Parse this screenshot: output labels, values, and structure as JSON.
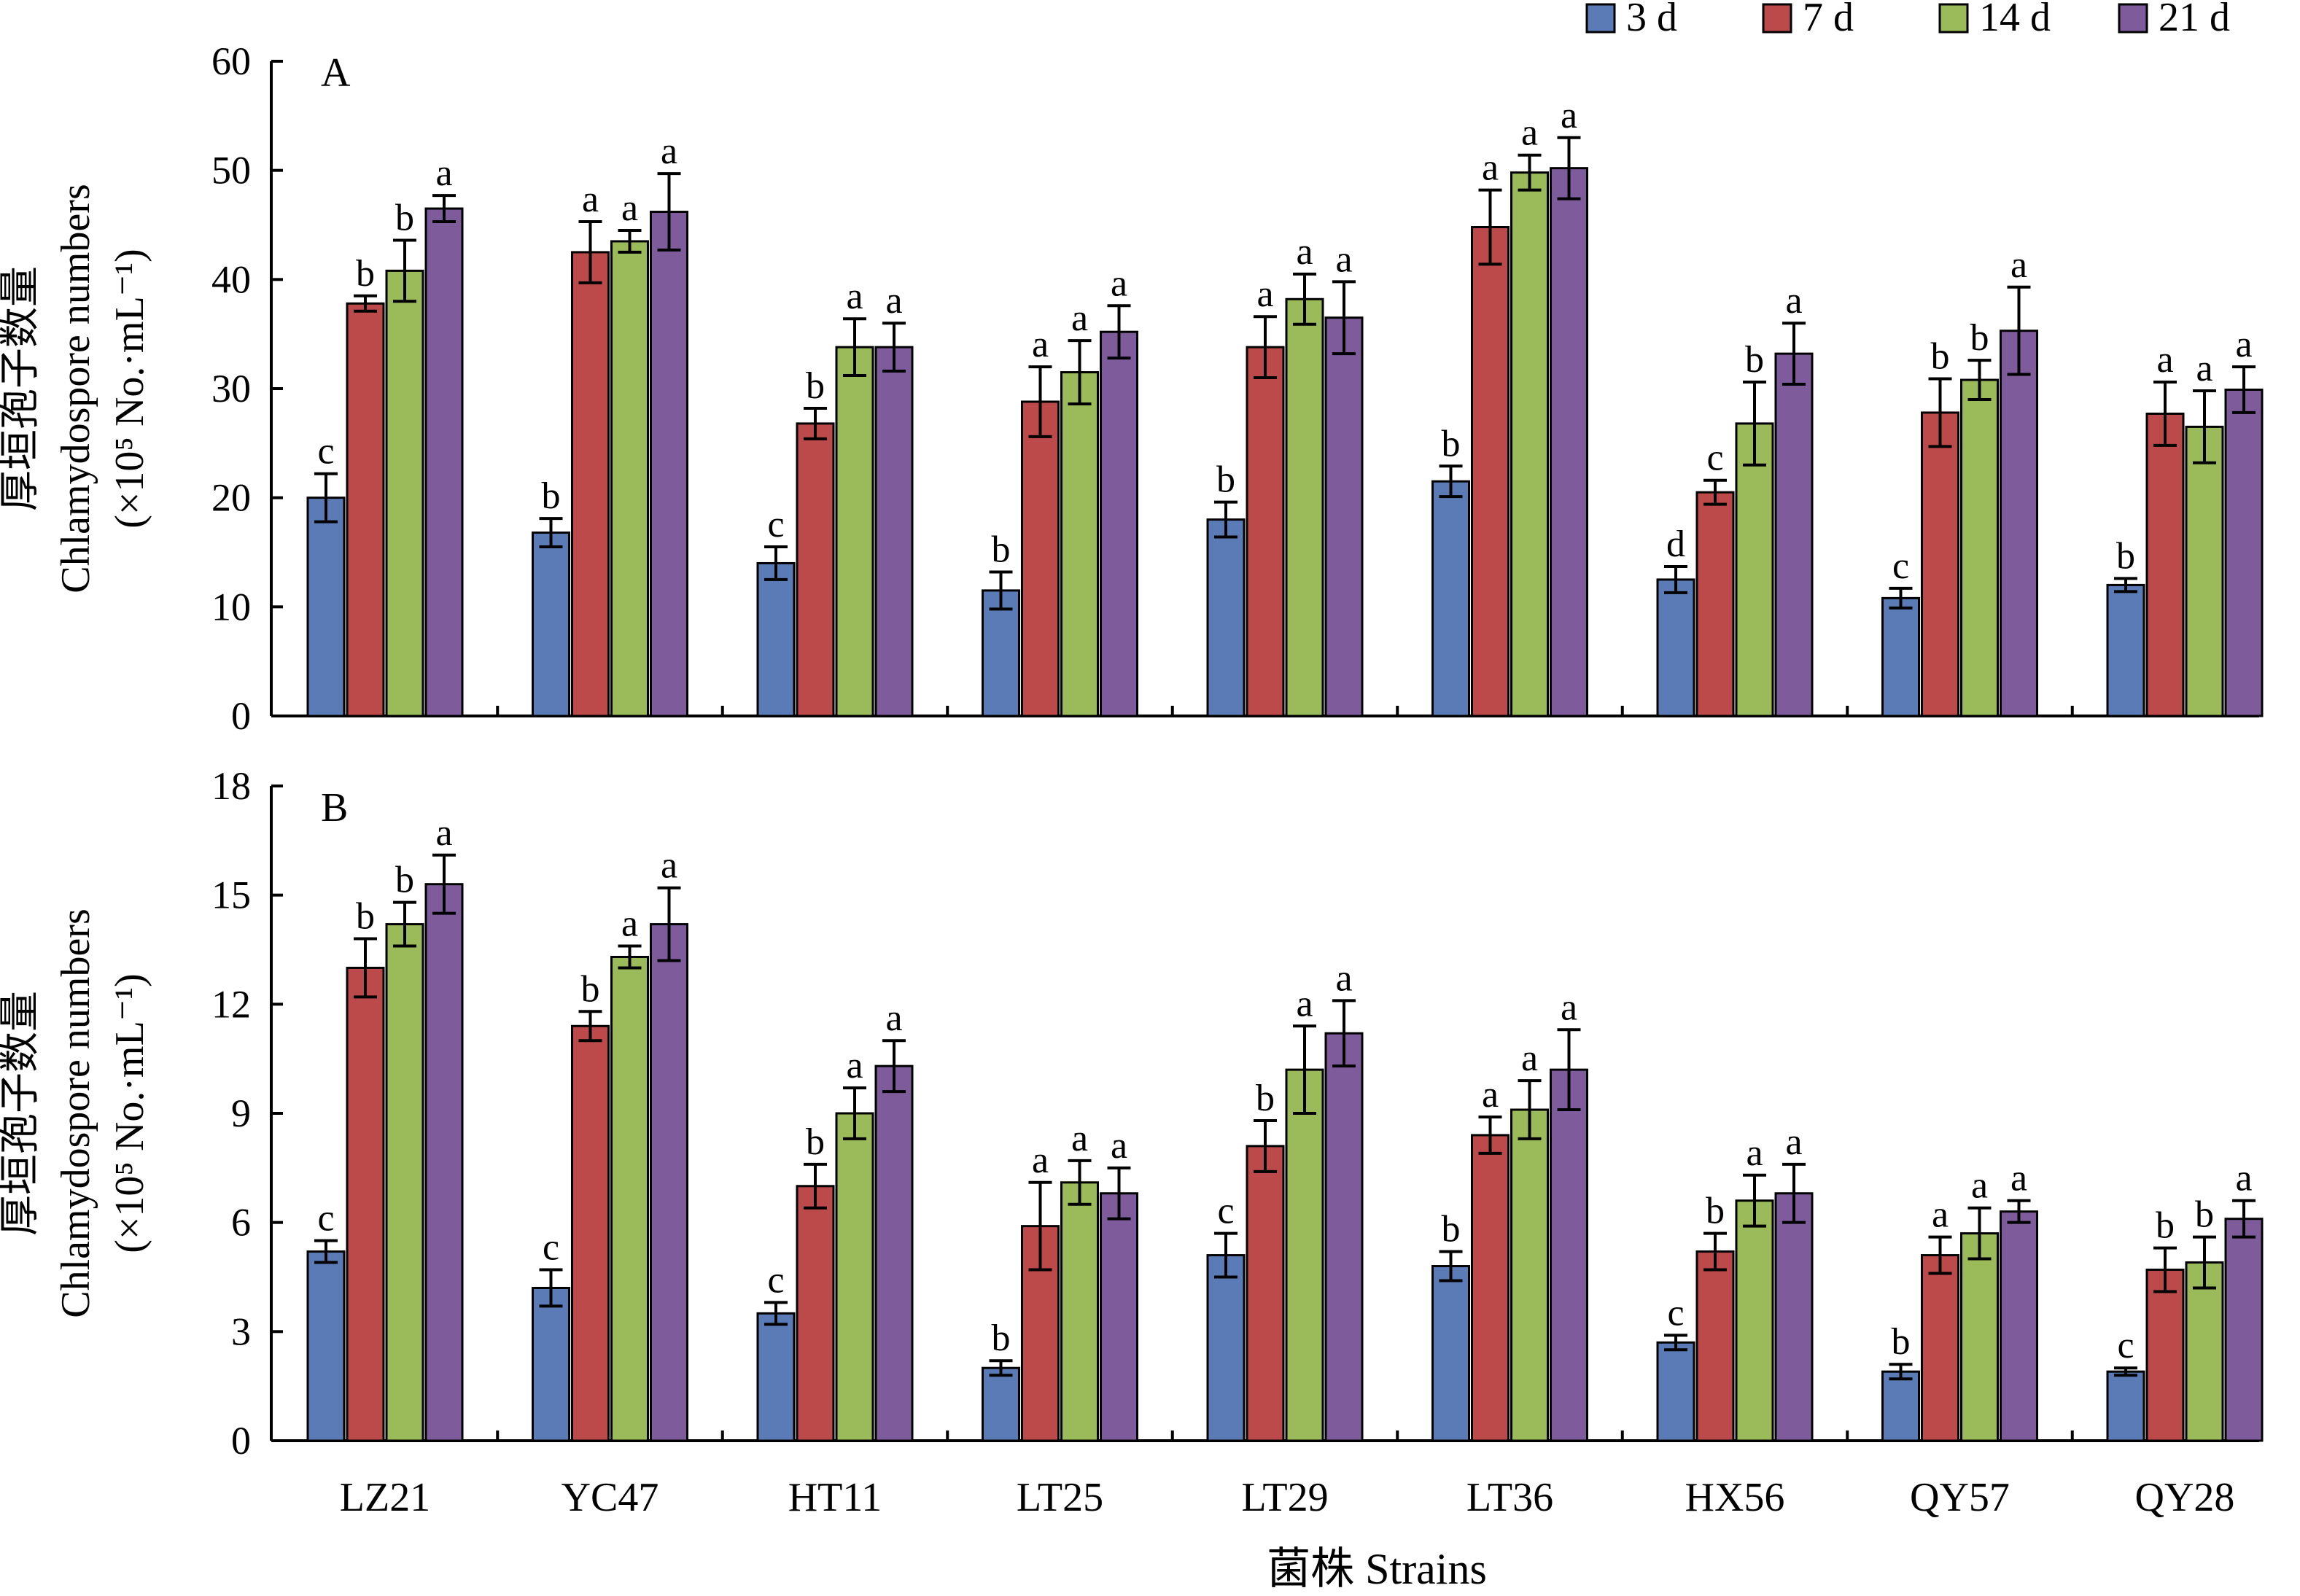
{
  "legend": [
    {
      "label": "3 d",
      "color": "#5b7bb6"
    },
    {
      "label": "7 d",
      "color": "#bc4a4a"
    },
    {
      "label": "14 d",
      "color": "#9bbb5a"
    },
    {
      "label": "21 d",
      "color": "#7e5c9c"
    }
  ],
  "xlabel": "菌株 Strains",
  "chart_data": [
    {
      "type": "bar",
      "panel": "A",
      "title": "A",
      "ylabel_cn": "厚垣孢子数量",
      "ylabel_en": "Chlamydospore numbers",
      "ylabel_unit": "(×10⁵ No.·mL⁻¹)",
      "ylim": [
        0,
        60
      ],
      "yticks": [
        "0",
        "10",
        "20",
        "30",
        "40",
        "50",
        "60"
      ],
      "ytick_values": [
        0,
        10,
        20,
        30,
        40,
        50,
        60
      ],
      "categories": [
        "LZ21",
        "YC47",
        "HT11",
        "LT25",
        "LT29",
        "LT36",
        "HX56",
        "QY57",
        "QY28"
      ],
      "series": [
        {
          "name": "3 d",
          "values": [
            20,
            16.8,
            14,
            11.5,
            18,
            21.5,
            12.5,
            10.8,
            12
          ],
          "errors": [
            2.2,
            1.3,
            1.5,
            1.7,
            1.6,
            1.4,
            1.2,
            0.9,
            0.6
          ],
          "letters": [
            "c",
            "b",
            "c",
            "b",
            "b",
            "b",
            "d",
            "c",
            "b"
          ]
        },
        {
          "name": "7 d",
          "values": [
            37.8,
            42.5,
            26.8,
            28.8,
            33.8,
            44.8,
            20.5,
            27.8,
            27.7
          ],
          "errors": [
            0.7,
            2.8,
            1.4,
            3.2,
            2.8,
            3.4,
            1.1,
            3.1,
            2.9
          ],
          "letters": [
            "b",
            "a",
            "b",
            "a",
            "a",
            "a",
            "c",
            "b",
            "a"
          ]
        },
        {
          "name": "14 d",
          "values": [
            40.8,
            43.5,
            33.8,
            31.5,
            38.2,
            49.8,
            26.8,
            30.8,
            26.5
          ],
          "errors": [
            2.8,
            1.0,
            2.6,
            2.9,
            2.3,
            1.6,
            3.8,
            1.8,
            3.3
          ],
          "letters": [
            "b",
            "a",
            "a",
            "a",
            "a",
            "a",
            "b",
            "b",
            "a"
          ]
        },
        {
          "name": "21 d",
          "values": [
            46.5,
            46.2,
            33.8,
            35.2,
            36.5,
            50.2,
            33.2,
            35.3,
            29.9
          ],
          "errors": [
            1.2,
            3.5,
            2.2,
            2.4,
            3.3,
            2.8,
            2.8,
            4.0,
            2.1
          ],
          "letters": [
            "a",
            "a",
            "a",
            "a",
            "a",
            "a",
            "a",
            "a",
            "a"
          ]
        }
      ]
    },
    {
      "type": "bar",
      "panel": "B",
      "title": "B",
      "ylabel_cn": "厚垣孢子数量",
      "ylabel_en": "Chlamydospore numbers",
      "ylabel_unit": "(×10⁵ No.·mL⁻¹)",
      "ylim": [
        0,
        18
      ],
      "yticks": [
        "0",
        "3",
        "6",
        "9",
        "12",
        "15",
        "18"
      ],
      "ytick_values": [
        0,
        3,
        6,
        9,
        12,
        15,
        18
      ],
      "categories": [
        "LZ21",
        "YC47",
        "HT11",
        "LT25",
        "LT29",
        "LT36",
        "HX56",
        "QY57",
        "QY28"
      ],
      "series": [
        {
          "name": "3 d",
          "values": [
            5.2,
            4.2,
            3.5,
            2.0,
            5.1,
            4.8,
            2.7,
            1.9,
            1.9
          ],
          "errors": [
            0.3,
            0.5,
            0.3,
            0.2,
            0.6,
            0.4,
            0.2,
            0.2,
            0.1
          ],
          "letters": [
            "c",
            "c",
            "c",
            "b",
            "c",
            "b",
            "c",
            "b",
            "c"
          ]
        },
        {
          "name": "7 d",
          "values": [
            13.0,
            11.4,
            7.0,
            5.9,
            8.1,
            8.4,
            5.2,
            5.1,
            4.7
          ],
          "errors": [
            0.8,
            0.4,
            0.6,
            1.2,
            0.7,
            0.5,
            0.5,
            0.5,
            0.6
          ],
          "letters": [
            "b",
            "b",
            "b",
            "a",
            "b",
            "a",
            "b",
            "a",
            "b"
          ]
        },
        {
          "name": "14 d",
          "values": [
            14.2,
            13.3,
            9.0,
            7.1,
            10.2,
            9.1,
            6.6,
            5.7,
            4.9
          ],
          "errors": [
            0.6,
            0.3,
            0.7,
            0.6,
            1.2,
            0.8,
            0.7,
            0.7,
            0.7
          ],
          "letters": [
            "b",
            "a",
            "a",
            "a",
            "a",
            "a",
            "a",
            "a",
            "b"
          ]
        },
        {
          "name": "21 d",
          "values": [
            15.3,
            14.2,
            10.3,
            6.8,
            11.2,
            10.2,
            6.8,
            6.3,
            6.1
          ],
          "errors": [
            0.8,
            1.0,
            0.7,
            0.7,
            0.9,
            1.1,
            0.8,
            0.3,
            0.5
          ],
          "letters": [
            "a",
            "a",
            "a",
            "a",
            "a",
            "a",
            "a",
            "a",
            "a"
          ]
        }
      ]
    }
  ]
}
